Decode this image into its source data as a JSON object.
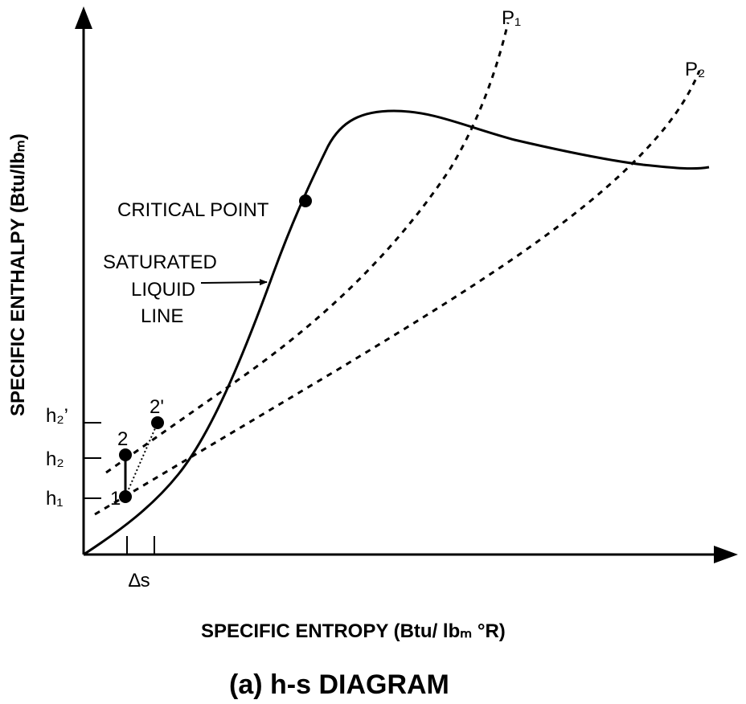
{
  "title": "(a)  h-s DIAGRAM",
  "x_axis_label": "SPECIFIC ENTROPY (Btu/ lbₘ °R)",
  "y_axis_label": "SPECIFIC ENTHALPY (Btu/lbₘ)",
  "labels": {
    "critical_point": "CRITICAL POINT",
    "saturated_liquid_line": [
      "SATURATED",
      "LIQUID",
      "LINE"
    ],
    "p1": "P₁",
    "p2": "P₂",
    "h1": "h₁",
    "h2": "h₂",
    "h2prime": "h₂’",
    "point1": "1",
    "point2": "2",
    "point2prime": "2'",
    "delta_s": "∆s"
  }
}
